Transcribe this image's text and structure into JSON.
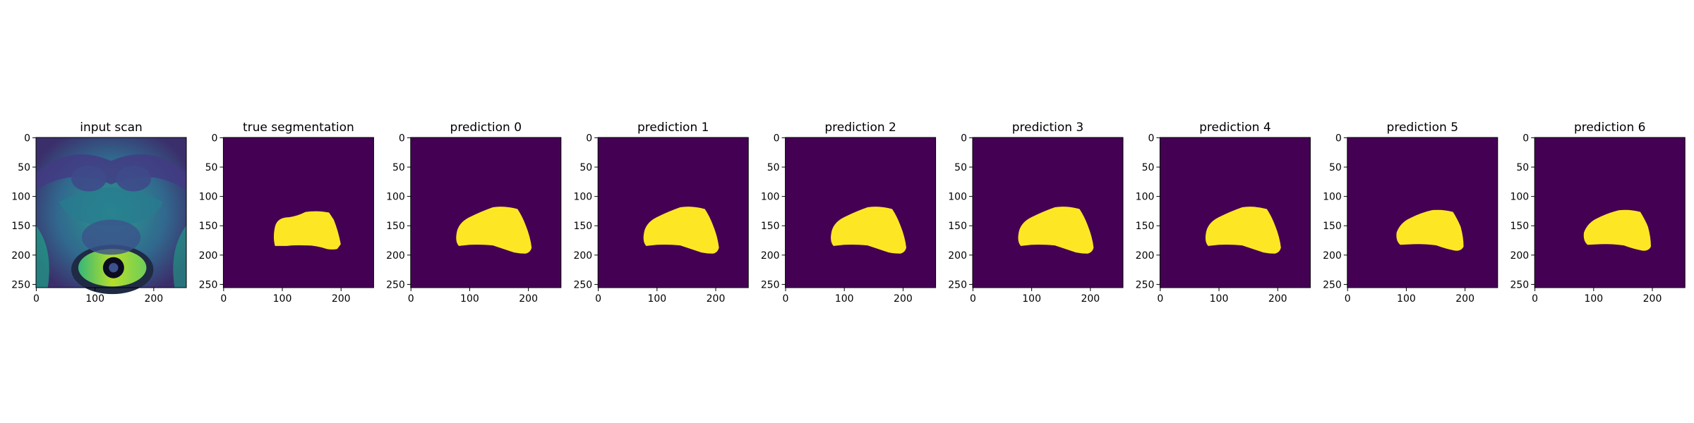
{
  "figure": {
    "background": "#ffffff",
    "colormap": {
      "low": "#440154",
      "high": "#fde725"
    },
    "panels": [
      {
        "id": "input-scan",
        "title": "input scan",
        "kind": "scan"
      },
      {
        "id": "true-segmentation",
        "title": "true segmentation",
        "kind": "mask"
      },
      {
        "id": "prediction-0",
        "title": "prediction 0",
        "kind": "mask"
      },
      {
        "id": "prediction-1",
        "title": "prediction 1",
        "kind": "mask"
      },
      {
        "id": "prediction-2",
        "title": "prediction 2",
        "kind": "mask"
      },
      {
        "id": "prediction-3",
        "title": "prediction 3",
        "kind": "mask"
      },
      {
        "id": "prediction-4",
        "title": "prediction 4",
        "kind": "mask"
      },
      {
        "id": "prediction-5",
        "title": "prediction 5",
        "kind": "mask"
      },
      {
        "id": "prediction-6",
        "title": "prediction 6",
        "kind": "mask"
      }
    ],
    "axes": {
      "x_ticks": [
        "0",
        "100",
        "200"
      ],
      "y_ticks": [
        "0",
        "50",
        "100",
        "150",
        "200",
        "250"
      ]
    }
  }
}
